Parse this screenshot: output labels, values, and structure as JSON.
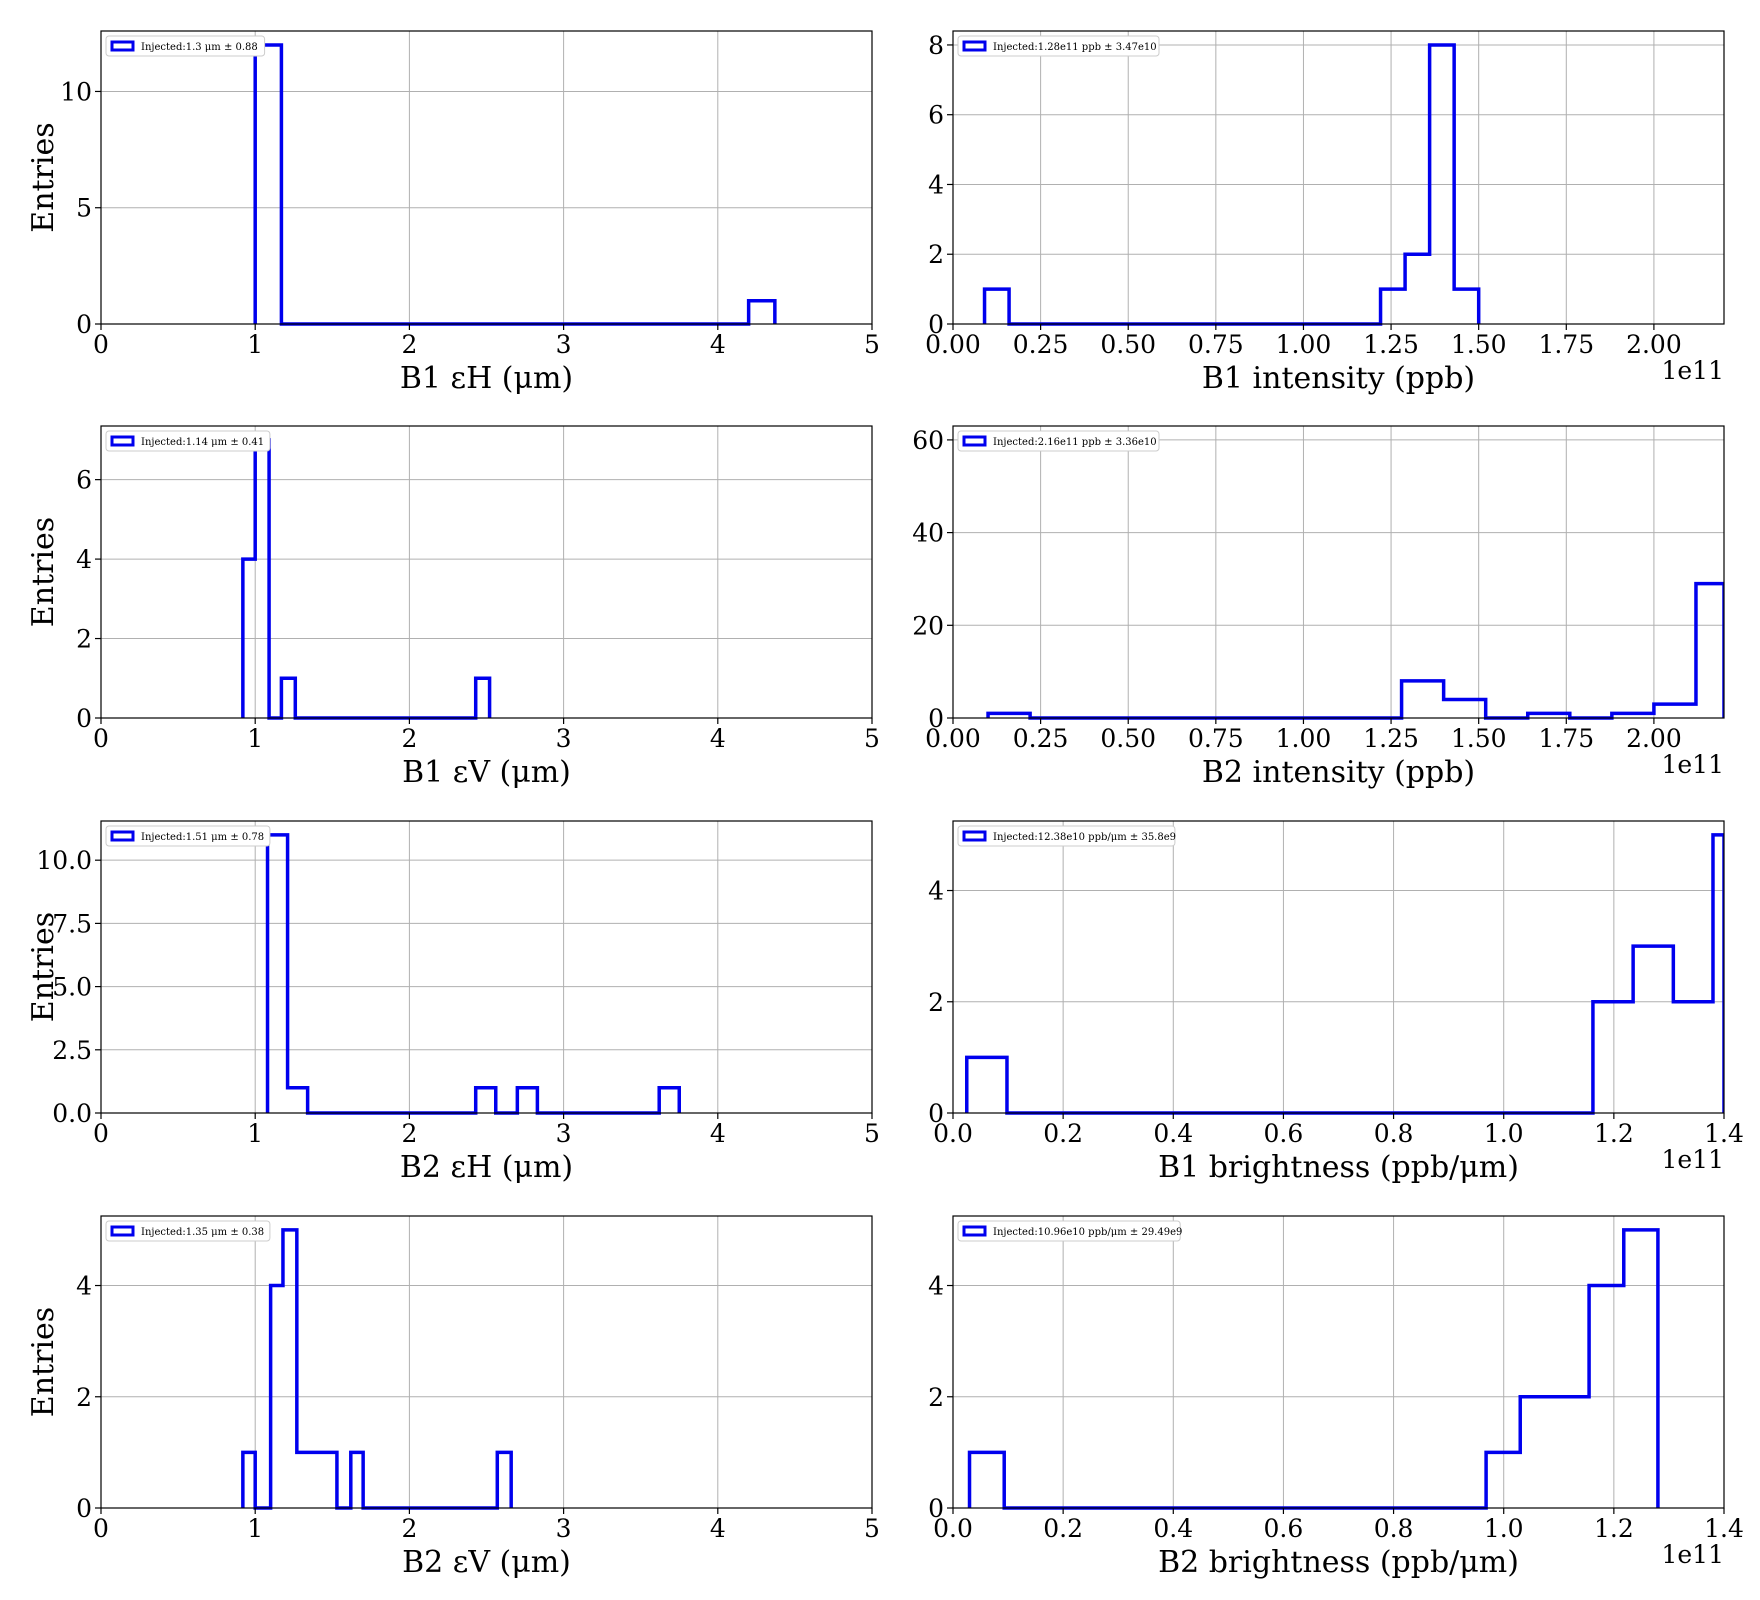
{
  "chart_data": [
    {
      "type": "histogram",
      "ylabel": "Entries",
      "xlabel": "B1 εH (μm)",
      "xlim": [
        0,
        5
      ],
      "ylim": [
        0,
        12.6
      ],
      "xticks": [
        0,
        1,
        2,
        3,
        4,
        5
      ],
      "xtick_labels": [
        "0",
        "1",
        "2",
        "3",
        "4",
        "5"
      ],
      "yticks": [
        0,
        5,
        10
      ],
      "ytick_labels": [
        "0",
        "5",
        "10"
      ],
      "offset_text": "",
      "legend": "Injected:1.3 μm ± 0.88",
      "grid": true,
      "legend_position": "upper-left",
      "bins": [
        [
          1.0,
          1.17,
          12
        ],
        [
          1.17,
          4.2,
          0
        ],
        [
          4.2,
          4.37,
          1
        ]
      ]
    },
    {
      "type": "histogram",
      "ylabel": "",
      "xlabel": "B1 intensity (ppb)",
      "xlim": [
        0,
        2.2
      ],
      "ylim": [
        0,
        8.4
      ],
      "xticks": [
        0,
        0.25,
        0.5,
        0.75,
        1.0,
        1.25,
        1.5,
        1.75,
        2.0
      ],
      "xtick_labels": [
        "0.00",
        "0.25",
        "0.50",
        "0.75",
        "1.00",
        "1.25",
        "1.50",
        "1.75",
        "2.00"
      ],
      "yticks": [
        0,
        2,
        4,
        6,
        8
      ],
      "ytick_labels": [
        "0",
        "2",
        "4",
        "6",
        "8"
      ],
      "offset_text": "1e11",
      "legend": "Injected:1.28e11 ppb ± 3.47e10",
      "grid": true,
      "legend_position": "upper-left",
      "bins": [
        [
          0.09,
          0.16,
          1
        ],
        [
          0.16,
          1.22,
          0
        ],
        [
          1.22,
          1.29,
          1
        ],
        [
          1.29,
          1.36,
          2
        ],
        [
          1.36,
          1.43,
          8
        ],
        [
          1.43,
          1.5,
          1
        ]
      ]
    },
    {
      "type": "histogram",
      "ylabel": "Entries",
      "xlabel": "B1 εV (μm)",
      "xlim": [
        0,
        5
      ],
      "ylim": [
        0,
        7.35
      ],
      "xticks": [
        0,
        1,
        2,
        3,
        4,
        5
      ],
      "xtick_labels": [
        "0",
        "1",
        "2",
        "3",
        "4",
        "5"
      ],
      "yticks": [
        0,
        2,
        4,
        6
      ],
      "ytick_labels": [
        "0",
        "2",
        "4",
        "6"
      ],
      "offset_text": "",
      "legend": "Injected:1.14 μm ± 0.41",
      "grid": true,
      "legend_position": "upper-left",
      "bins": [
        [
          0.92,
          1.0,
          4
        ],
        [
          1.0,
          1.09,
          7
        ],
        [
          1.09,
          1.17,
          0
        ],
        [
          1.17,
          1.26,
          1
        ],
        [
          1.26,
          2.43,
          0
        ],
        [
          2.43,
          2.52,
          1
        ]
      ]
    },
    {
      "type": "histogram",
      "ylabel": "",
      "xlabel": "B2 intensity (ppb)",
      "xlim": [
        0,
        2.2
      ],
      "ylim": [
        0,
        63
      ],
      "xticks": [
        0,
        0.25,
        0.5,
        0.75,
        1.0,
        1.25,
        1.5,
        1.75,
        2.0
      ],
      "xtick_labels": [
        "0.00",
        "0.25",
        "0.50",
        "0.75",
        "1.00",
        "1.25",
        "1.50",
        "1.75",
        "2.00"
      ],
      "yticks": [
        0,
        20,
        40,
        60
      ],
      "ytick_labels": [
        "0",
        "20",
        "40",
        "60"
      ],
      "offset_text": "1e11",
      "legend": "Injected:2.16e11 ppb ± 3.36e10",
      "grid": true,
      "legend_position": "upper-left",
      "bins": [
        [
          0.1,
          0.22,
          1
        ],
        [
          0.22,
          1.28,
          0
        ],
        [
          1.28,
          1.4,
          8
        ],
        [
          1.4,
          1.52,
          4
        ],
        [
          1.52,
          1.64,
          0
        ],
        [
          1.64,
          1.76,
          1
        ],
        [
          1.76,
          1.88,
          0
        ],
        [
          1.88,
          2.0,
          1
        ],
        [
          2.0,
          2.12,
          3
        ],
        [
          2.12,
          2.2,
          29
        ]
      ]
    },
    {
      "type": "histogram",
      "ylabel": "Entries",
      "xlabel": "B2 εH (μm)",
      "xlim": [
        0,
        5
      ],
      "ylim": [
        0,
        11.55
      ],
      "xticks": [
        0,
        1,
        2,
        3,
        4,
        5
      ],
      "xtick_labels": [
        "0",
        "1",
        "2",
        "3",
        "4",
        "5"
      ],
      "yticks": [
        0,
        2.5,
        5,
        7.5,
        10
      ],
      "ytick_labels": [
        "0.0",
        "2.5",
        "5.0",
        "7.5",
        "10.0"
      ],
      "offset_text": "",
      "legend": "Injected:1.51 μm ± 0.78",
      "grid": true,
      "legend_position": "upper-left",
      "bins": [
        [
          1.08,
          1.21,
          11
        ],
        [
          1.21,
          1.34,
          1
        ],
        [
          1.34,
          2.43,
          0
        ],
        [
          2.43,
          2.56,
          1
        ],
        [
          2.56,
          2.7,
          0
        ],
        [
          2.7,
          2.83,
          1
        ],
        [
          2.83,
          3.62,
          0
        ],
        [
          3.62,
          3.75,
          1
        ]
      ]
    },
    {
      "type": "histogram",
      "ylabel": "",
      "xlabel": "B1 brightness (ppb/μm)",
      "xlim": [
        0,
        1.4
      ],
      "ylim": [
        0,
        5.25
      ],
      "xticks": [
        0,
        0.2,
        0.4,
        0.6,
        0.8,
        1.0,
        1.2,
        1.4
      ],
      "xtick_labels": [
        "0.0",
        "0.2",
        "0.4",
        "0.6",
        "0.8",
        "1.0",
        "1.2",
        "1.4"
      ],
      "yticks": [
        0,
        2,
        4
      ],
      "ytick_labels": [
        "0",
        "2",
        "4"
      ],
      "offset_text": "1e11",
      "legend": "Injected:12.38e10 ppb/μm ± 35.8e9",
      "grid": true,
      "legend_position": "upper-left",
      "bins": [
        [
          0.025,
          0.098,
          1
        ],
        [
          0.098,
          1.162,
          0
        ],
        [
          1.162,
          1.235,
          2
        ],
        [
          1.235,
          1.308,
          3
        ],
        [
          1.308,
          1.38,
          2
        ],
        [
          1.38,
          1.4,
          5
        ]
      ]
    },
    {
      "type": "histogram",
      "ylabel": "Entries",
      "xlabel": "B2 εV (μm)",
      "xlim": [
        0,
        5
      ],
      "ylim": [
        0,
        5.25
      ],
      "xticks": [
        0,
        1,
        2,
        3,
        4,
        5
      ],
      "xtick_labels": [
        "0",
        "1",
        "2",
        "3",
        "4",
        "5"
      ],
      "yticks": [
        0,
        2,
        4
      ],
      "ytick_labels": [
        "0",
        "2",
        "4"
      ],
      "offset_text": "",
      "legend": "Injected:1.35 μm ± 0.38",
      "grid": true,
      "legend_position": "upper-left",
      "bins": [
        [
          0.92,
          1.0,
          1
        ],
        [
          1.0,
          1.1,
          0
        ],
        [
          1.1,
          1.18,
          4
        ],
        [
          1.18,
          1.27,
          5
        ],
        [
          1.27,
          1.53,
          1
        ],
        [
          1.53,
          1.62,
          0
        ],
        [
          1.62,
          1.7,
          1
        ],
        [
          1.7,
          2.57,
          0
        ],
        [
          2.57,
          2.66,
          1
        ]
      ]
    },
    {
      "type": "histogram",
      "ylabel": "",
      "xlabel": "B2 brightness (ppb/μm)",
      "xlim": [
        0,
        1.4
      ],
      "ylim": [
        0,
        5.25
      ],
      "xticks": [
        0,
        0.2,
        0.4,
        0.6,
        0.8,
        1.0,
        1.2,
        1.4
      ],
      "xtick_labels": [
        "0.0",
        "0.2",
        "0.4",
        "0.6",
        "0.8",
        "1.0",
        "1.2",
        "1.4"
      ],
      "yticks": [
        0,
        2,
        4
      ],
      "ytick_labels": [
        "0",
        "2",
        "4"
      ],
      "offset_text": "1e11",
      "legend": "Injected:10.96e10 ppb/μm ± 29.49e9",
      "grid": true,
      "legend_position": "upper-left",
      "bins": [
        [
          0.03,
          0.093,
          1
        ],
        [
          0.093,
          0.968,
          0
        ],
        [
          0.968,
          1.03,
          1
        ],
        [
          1.03,
          1.155,
          2
        ],
        [
          1.155,
          1.218,
          4
        ],
        [
          1.218,
          1.28,
          5
        ]
      ]
    }
  ]
}
